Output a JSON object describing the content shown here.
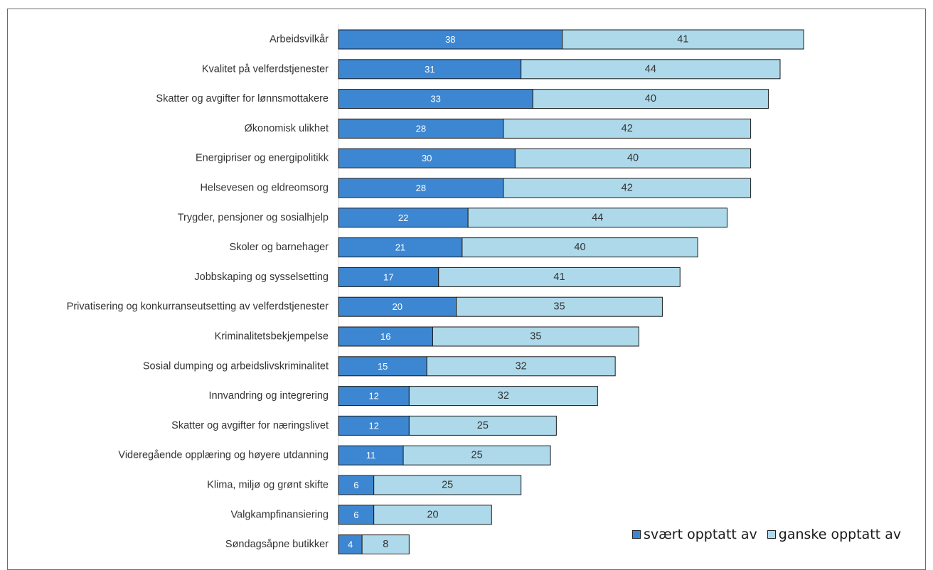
{
  "chart_data": {
    "type": "bar",
    "orientation": "horizontal",
    "stacked": true,
    "categories": [
      "Arbeidsvilkår",
      "Kvalitet på velferdstjenester",
      "Skatter og avgifter for lønnsmottakere",
      "Økonomisk ulikhet",
      "Energipriser og energipolitikk",
      "Helsevesen og eldreomsorg",
      "Trygder, pensjoner og sosialhjelp",
      "Skoler og barnehager",
      "Jobbskaping og sysselsetting",
      "Privatisering og konkurranseutsetting av velferdstjenester",
      "Kriminalitetsbekjempelse",
      "Sosial dumping og arbeidslivskriminalitet",
      "Innvandring og integrering",
      "Skatter og avgifter for næringslivet",
      "Videregående opplæring og høyere utdanning",
      "Klima, miljø og grønt skifte",
      "Valgkampfinansiering",
      "Søndagsåpne butikker"
    ],
    "series": [
      {
        "name": "svært opptatt av",
        "color": "#3d87d2",
        "values": [
          38,
          31,
          33,
          28,
          30,
          28,
          22,
          21,
          17,
          20,
          16,
          15,
          12,
          12,
          11,
          6,
          6,
          4
        ]
      },
      {
        "name": "ganske opptatt av",
        "color": "#aed9ea",
        "values": [
          41,
          44,
          40,
          42,
          40,
          42,
          44,
          40,
          41,
          35,
          35,
          32,
          32,
          25,
          25,
          25,
          20,
          8
        ]
      }
    ],
    "data_labels": true,
    "legend_position": "bottom-right",
    "grid": false,
    "xlim": [
      0,
      100
    ]
  },
  "legend": {
    "items": [
      {
        "label": "svært opptatt av",
        "color": "#3d87d2"
      },
      {
        "label": "ganske opptatt av",
        "color": "#aed9ea"
      }
    ]
  }
}
